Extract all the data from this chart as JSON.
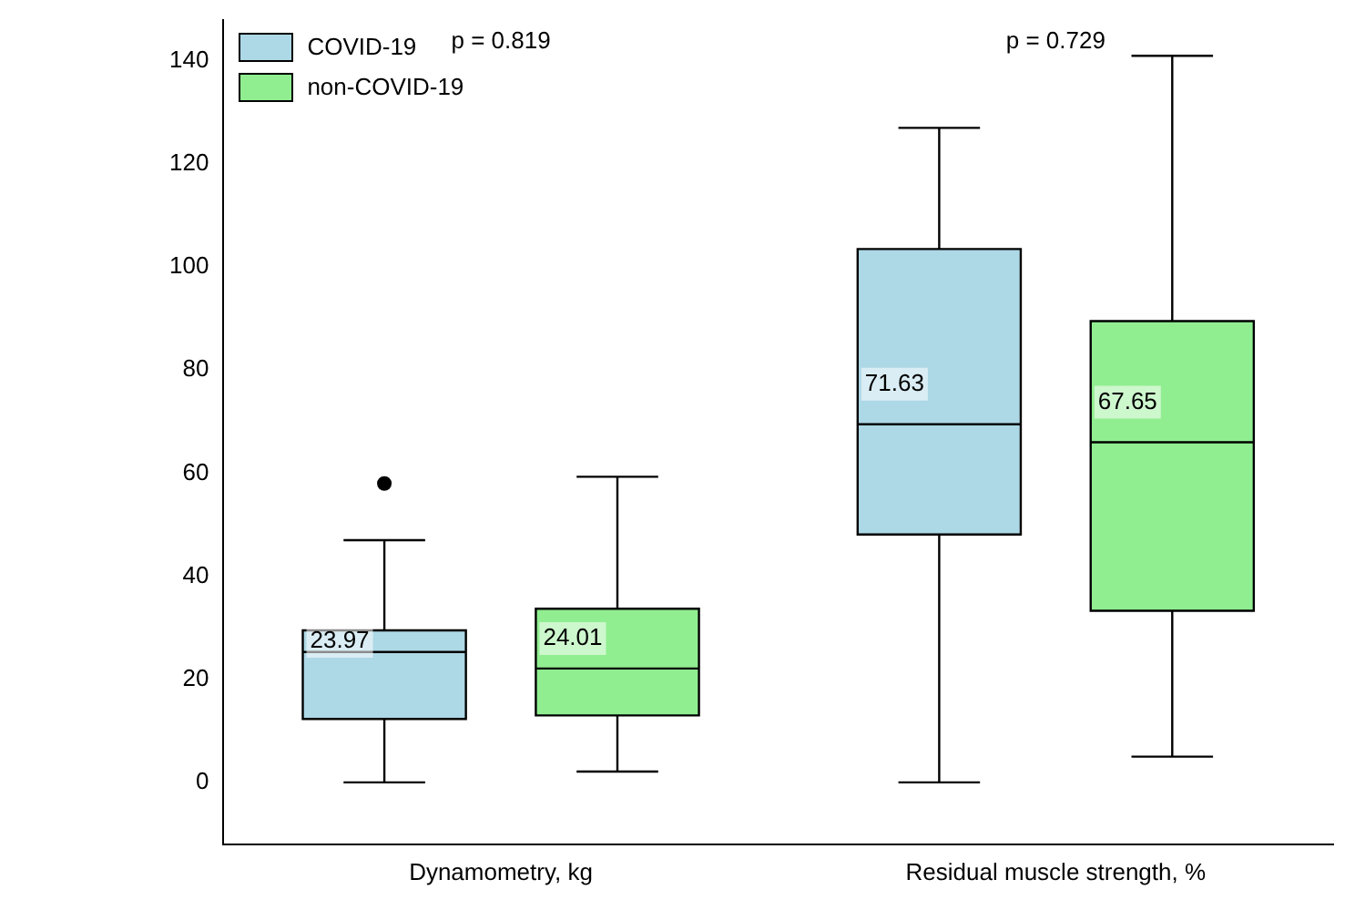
{
  "chart_data": {
    "type": "box",
    "categories": [
      "Dynamometry, kg",
      "Residual muscle strength, %"
    ],
    "series": [
      {
        "name": "COVID-19",
        "color": "#add8e6",
        "value_labels": [
          "23.97",
          "71.63"
        ],
        "boxes": [
          {
            "low": 0,
            "q1": 12.3,
            "median": 25.3,
            "q3": 29.5,
            "high": 47,
            "outliers": [
              58
            ]
          },
          {
            "low": 0,
            "q1": 48.1,
            "median": 69.5,
            "q3": 103.5,
            "high": 127
          }
        ]
      },
      {
        "name": "non-COVID-19",
        "color": "#90ee90",
        "value_labels": [
          "24.01",
          "67.65"
        ],
        "boxes": [
          {
            "low": 2.1,
            "q1": 13,
            "median": 22.1,
            "q3": 33.7,
            "high": 59.3
          },
          {
            "low": 5,
            "q1": 33.3,
            "median": 66,
            "q3": 89.5,
            "high": 141
          }
        ]
      }
    ],
    "ylim": [
      -12,
      148
    ],
    "yticks": [
      0,
      20,
      40,
      60,
      80,
      100,
      120,
      140
    ],
    "annotations": [
      "p = 0.819",
      "p = 0.729"
    ],
    "grid": false,
    "legend": "top left"
  }
}
